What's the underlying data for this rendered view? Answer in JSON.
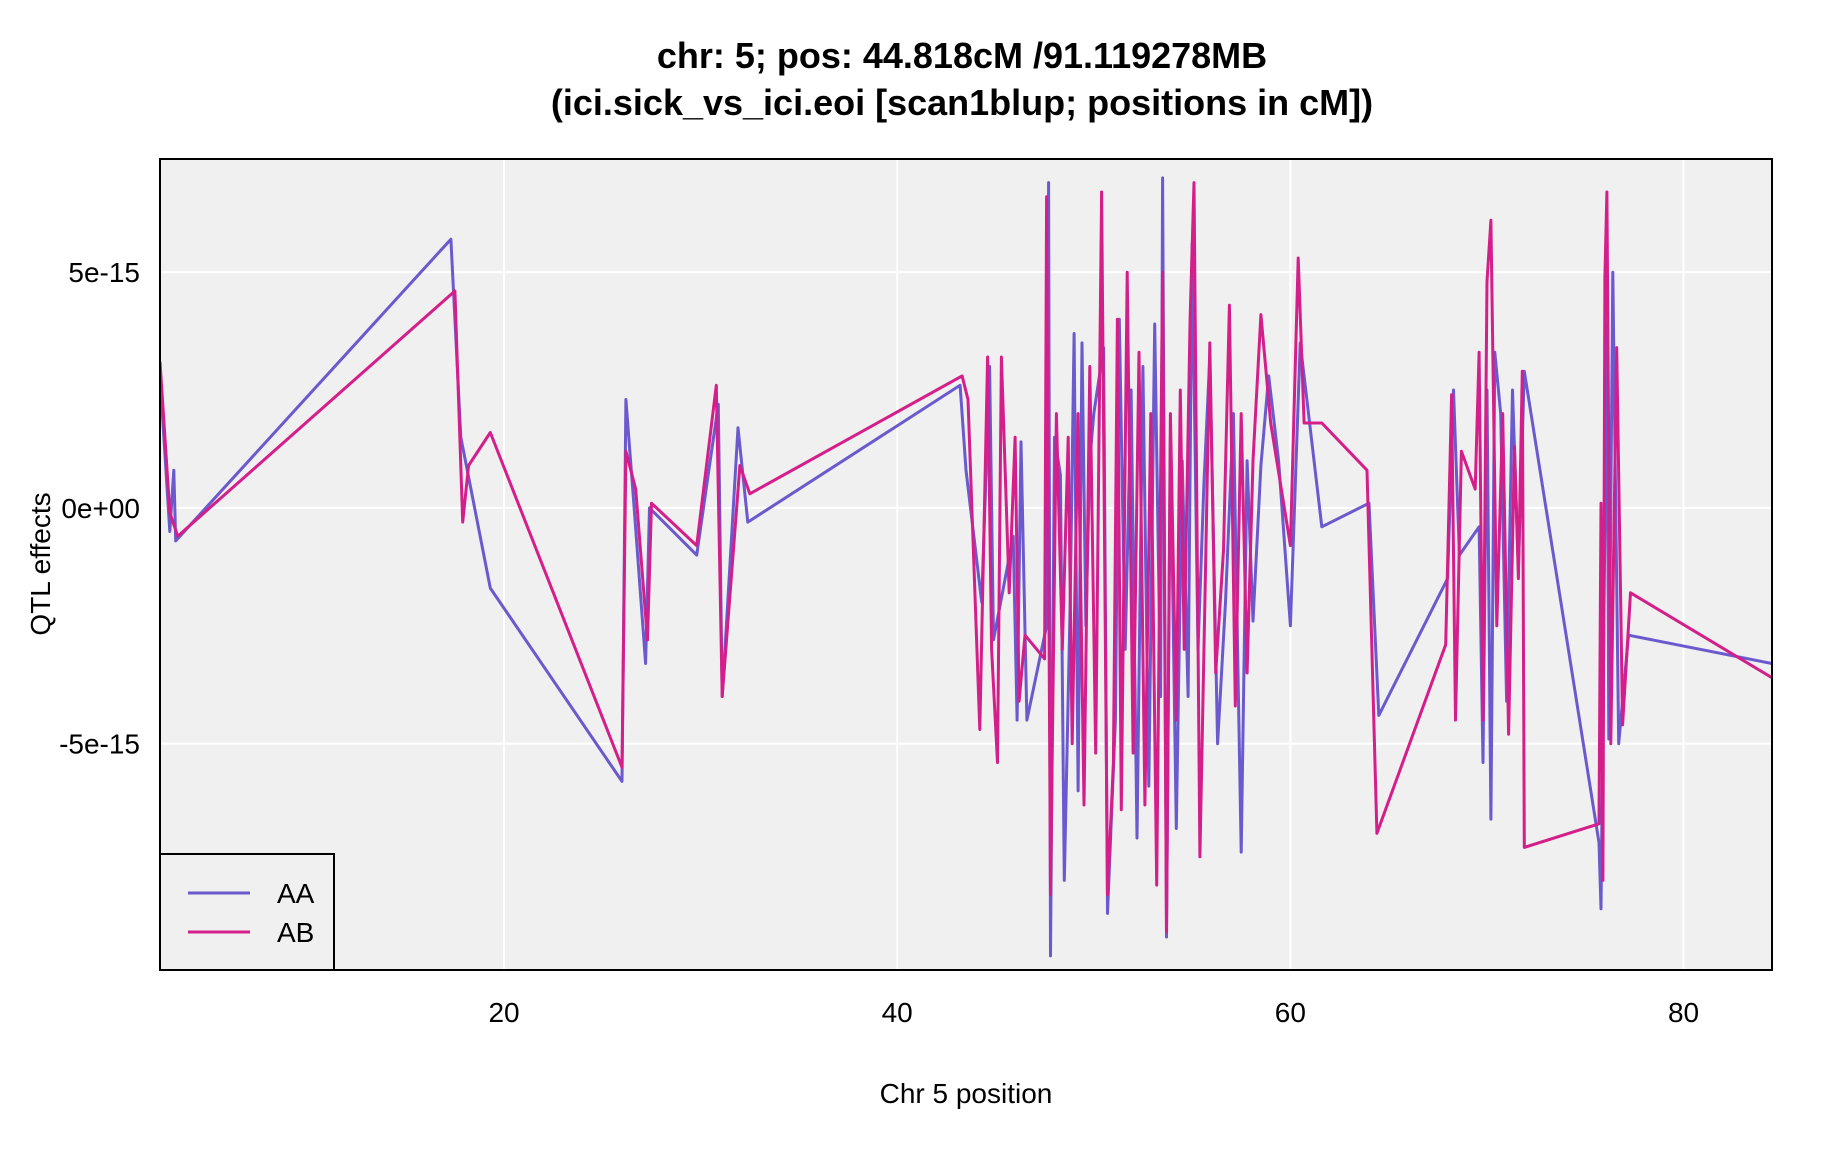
{
  "chart_data": {
    "type": "line",
    "title_line1": "chr: 5; pos: 44.818cM /91.119278MB",
    "title_line2": "(ici.sick_vs_ici.eoi [scan1blup; positions in cM])",
    "xlabel": "Chr 5 position",
    "ylabel": "QTL effects",
    "xlim": [
      2.5,
      84.5
    ],
    "ylim": [
      -9.8e-15,
      7.4e-15
    ],
    "x_ticks": [
      20,
      40,
      60,
      80
    ],
    "x_tick_labels": [
      "20",
      "40",
      "60",
      "80"
    ],
    "y_ticks": [
      -5e-15,
      0,
      5e-15
    ],
    "y_tick_labels": [
      "-5e-15",
      "0e+00",
      "5e-15"
    ],
    "grid": true,
    "legend_position": "bottom-left",
    "series": [
      {
        "name": "AA",
        "color": "#6a5acd",
        "points": [
          [
            2.5,
            2.8e-15
          ],
          [
            3.0,
            -5e-16
          ],
          [
            3.2,
            8e-16
          ],
          [
            3.3,
            -7e-16
          ],
          [
            17.3,
            5.7e-15
          ],
          [
            17.8,
            1.5e-15
          ],
          [
            19.3,
            -1.7e-15
          ],
          [
            26.0,
            -5.8e-15
          ],
          [
            26.2,
            2.3e-15
          ],
          [
            26.6,
            1e-16
          ],
          [
            27.2,
            -3.3e-15
          ],
          [
            27.4,
            0.0
          ],
          [
            29.8,
            -1e-15
          ],
          [
            30.9,
            2.2e-15
          ],
          [
            31.1,
            -4e-15
          ],
          [
            31.9,
            1.7e-15
          ],
          [
            32.4,
            -3e-16
          ],
          [
            43.2,
            2.6e-15
          ],
          [
            43.5,
            8e-16
          ],
          [
            44.3,
            -2e-15
          ],
          [
            44.7,
            3e-15
          ],
          [
            44.9,
            -2.8e-15
          ],
          [
            45.9,
            -6e-16
          ],
          [
            46.1,
            -4.5e-15
          ],
          [
            46.3,
            1.4e-15
          ],
          [
            46.6,
            -4.5e-15
          ],
          [
            47.6,
            -2.5e-15
          ],
          [
            47.7,
            6.9e-15
          ],
          [
            47.8,
            -9.5e-15
          ],
          [
            48.0,
            1.5e-15
          ],
          [
            48.3,
            7e-16
          ],
          [
            48.5,
            -7.9e-15
          ],
          [
            48.8,
            -2e-15
          ],
          [
            49.0,
            3.7e-15
          ],
          [
            49.2,
            -6e-15
          ],
          [
            49.4,
            3.5e-15
          ],
          [
            49.6,
            -2.5e-15
          ],
          [
            49.8,
            1e-15
          ],
          [
            50.0,
            2e-15
          ],
          [
            50.5,
            3.4e-15
          ],
          [
            50.7,
            -8.6e-15
          ],
          [
            51.1,
            -4.5e-15
          ],
          [
            51.3,
            4e-15
          ],
          [
            51.6,
            -3e-15
          ],
          [
            51.9,
            2.5e-15
          ],
          [
            52.2,
            -7e-15
          ],
          [
            52.5,
            3e-15
          ],
          [
            52.8,
            -5.9e-15
          ],
          [
            53.1,
            3.9e-15
          ],
          [
            53.4,
            -4e-15
          ],
          [
            53.5,
            7e-15
          ],
          [
            53.7,
            -9.1e-15
          ],
          [
            53.9,
            1.5e-15
          ],
          [
            54.2,
            -6.8e-15
          ],
          [
            54.5,
            1e-15
          ],
          [
            54.8,
            -4e-15
          ],
          [
            55.0,
            5.6e-15
          ],
          [
            55.3,
            -3e-15
          ],
          [
            55.6,
            5e-16
          ],
          [
            55.9,
            3.2e-15
          ],
          [
            56.3,
            -5e-15
          ],
          [
            56.7,
            -2e-15
          ],
          [
            57.1,
            2e-15
          ],
          [
            57.5,
            -7.3e-15
          ],
          [
            57.8,
            1e-15
          ],
          [
            58.1,
            -2.4e-15
          ],
          [
            58.5,
            9e-16
          ],
          [
            58.9,
            2.8e-15
          ],
          [
            59.4,
            1e-15
          ],
          [
            60.0,
            -2.5e-15
          ],
          [
            60.5,
            3.5e-15
          ],
          [
            61.6,
            -4e-16
          ],
          [
            64.0,
            1e-16
          ],
          [
            64.5,
            -4.4e-15
          ],
          [
            68.0,
            -1.5e-15
          ],
          [
            68.3,
            2.5e-15
          ],
          [
            68.6,
            -1e-15
          ],
          [
            69.6,
            -4e-16
          ],
          [
            69.8,
            -5.4e-15
          ],
          [
            70.0,
            2.5e-15
          ],
          [
            70.2,
            -6.6e-15
          ],
          [
            70.4,
            3.3e-15
          ],
          [
            70.7,
            2e-15
          ],
          [
            71.0,
            -4.1e-15
          ],
          [
            71.3,
            2.5e-15
          ],
          [
            71.6,
            -1.3e-15
          ],
          [
            71.9,
            2.9e-15
          ],
          [
            75.7,
            -7.1e-15
          ],
          [
            75.8,
            -8.5e-15
          ],
          [
            76.1,
            3.9e-15
          ],
          [
            76.2,
            -4.9e-15
          ],
          [
            76.4,
            5e-15
          ],
          [
            76.7,
            -5e-15
          ],
          [
            77.2,
            -2.7e-15
          ],
          [
            84.5,
            -3.3e-15
          ]
        ]
      },
      {
        "name": "AB",
        "color": "#d41f8a",
        "points": [
          [
            2.5,
            3.1e-15
          ],
          [
            3.0,
            -1e-16
          ],
          [
            3.4,
            -6e-16
          ],
          [
            17.5,
            4.6e-15
          ],
          [
            17.9,
            -3e-16
          ],
          [
            18.2,
            9e-16
          ],
          [
            19.3,
            1.6e-15
          ],
          [
            26.0,
            -5.5e-15
          ],
          [
            26.2,
            1.2e-15
          ],
          [
            26.7,
            4e-16
          ],
          [
            27.3,
            -2.8e-15
          ],
          [
            27.5,
            1e-16
          ],
          [
            29.8,
            -8e-16
          ],
          [
            30.8,
            2.6e-15
          ],
          [
            31.1,
            -4e-15
          ],
          [
            32.0,
            9e-16
          ],
          [
            32.5,
            3e-16
          ],
          [
            43.3,
            2.8e-15
          ],
          [
            43.6,
            2.3e-15
          ],
          [
            44.2,
            -4.7e-15
          ],
          [
            44.6,
            3.2e-15
          ],
          [
            44.8,
            -3e-15
          ],
          [
            45.1,
            -5.4e-15
          ],
          [
            45.3,
            3.2e-15
          ],
          [
            45.7,
            -1.8e-15
          ],
          [
            46.0,
            1.5e-15
          ],
          [
            46.2,
            -4.1e-15
          ],
          [
            46.5,
            -2.7e-15
          ],
          [
            47.5,
            -3.2e-15
          ],
          [
            47.6,
            6.6e-15
          ],
          [
            47.8,
            -8.2e-15
          ],
          [
            48.1,
            2e-15
          ],
          [
            48.4,
            -3e-15
          ],
          [
            48.7,
            1.5e-15
          ],
          [
            48.9,
            -5e-15
          ],
          [
            49.2,
            2e-15
          ],
          [
            49.5,
            -6.3e-15
          ],
          [
            49.8,
            3e-15
          ],
          [
            50.1,
            -5.2e-15
          ],
          [
            50.4,
            6.7e-15
          ],
          [
            50.7,
            -8.2e-15
          ],
          [
            51.0,
            -5.4e-15
          ],
          [
            51.2,
            4e-15
          ],
          [
            51.4,
            -6.4e-15
          ],
          [
            51.7,
            5e-15
          ],
          [
            52.0,
            -5.2e-15
          ],
          [
            52.3,
            3.3e-15
          ],
          [
            52.6,
            -6.3e-15
          ],
          [
            52.9,
            2e-15
          ],
          [
            53.2,
            -8e-15
          ],
          [
            53.5,
            5e-15
          ],
          [
            53.7,
            -9e-15
          ],
          [
            53.9,
            2e-15
          ],
          [
            54.2,
            -4.5e-15
          ],
          [
            54.4,
            2.5e-15
          ],
          [
            54.6,
            -3e-15
          ],
          [
            54.9,
            4e-15
          ],
          [
            55.1,
            6.9e-15
          ],
          [
            55.4,
            -7.4e-15
          ],
          [
            55.7,
            -1e-15
          ],
          [
            55.9,
            3.5e-15
          ],
          [
            56.2,
            -3.5e-15
          ],
          [
            56.6,
            -9e-16
          ],
          [
            56.9,
            4.3e-15
          ],
          [
            57.2,
            -4.2e-15
          ],
          [
            57.5,
            2e-15
          ],
          [
            57.8,
            -3.5e-15
          ],
          [
            58.1,
            1e-15
          ],
          [
            58.5,
            4.1e-15
          ],
          [
            59.0,
            1.8e-15
          ],
          [
            60.0,
            -8e-16
          ],
          [
            60.4,
            5.3e-15
          ],
          [
            60.7,
            1.8e-15
          ],
          [
            61.6,
            1.8e-15
          ],
          [
            63.9,
            8e-16
          ],
          [
            64.4,
            -6.9e-15
          ],
          [
            67.9,
            -2.9e-15
          ],
          [
            68.2,
            2.4e-15
          ],
          [
            68.4,
            -4.5e-15
          ],
          [
            68.7,
            1.2e-15
          ],
          [
            69.4,
            4e-16
          ],
          [
            69.6,
            3.3e-15
          ],
          [
            69.8,
            -4.5e-15
          ],
          [
            70.0,
            4.8e-15
          ],
          [
            70.2,
            6.1e-15
          ],
          [
            70.5,
            -2.5e-15
          ],
          [
            70.8,
            2e-15
          ],
          [
            71.1,
            -4.8e-15
          ],
          [
            71.4,
            1.3e-15
          ],
          [
            71.6,
            -1.5e-15
          ],
          [
            71.8,
            2.9e-15
          ],
          [
            71.9,
            -7.2e-15
          ],
          [
            75.7,
            -6.7e-15
          ],
          [
            75.8,
            1e-16
          ],
          [
            75.9,
            -7.9e-15
          ],
          [
            76.0,
            4.9e-15
          ],
          [
            76.1,
            6.7e-15
          ],
          [
            76.3,
            -5e-15
          ],
          [
            76.6,
            3.4e-15
          ],
          [
            76.9,
            -4.6e-15
          ],
          [
            77.3,
            -1.8e-15
          ],
          [
            84.5,
            -3.6e-15
          ]
        ]
      }
    ]
  }
}
